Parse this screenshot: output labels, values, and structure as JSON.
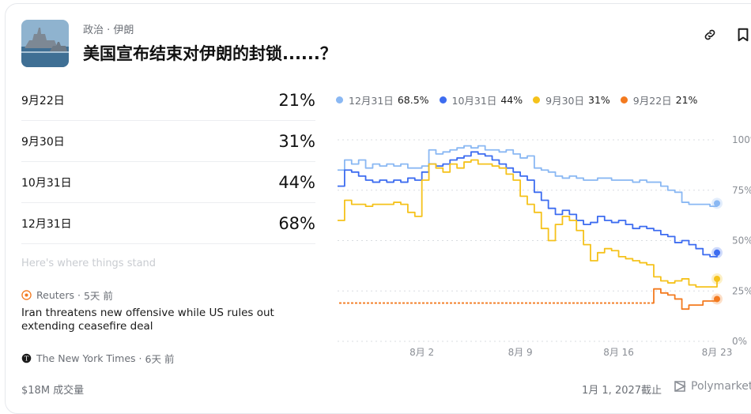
{
  "market": {
    "category": "政治 · 伊朗",
    "title": "美国宣布结束对伊朗的封锁......？",
    "thumbnail_icon": "warship-thumbnail"
  },
  "actions": {
    "link_icon": "link-icon",
    "bookmark_icon": "bookmark-icon"
  },
  "outcomes": [
    {
      "label": "9月22日",
      "percent": "21%"
    },
    {
      "label": "9月30日",
      "percent": "31%"
    },
    {
      "label": "10月31日",
      "percent": "44%"
    },
    {
      "label": "12月31日",
      "percent": "68%"
    }
  ],
  "news": {
    "section_label": "Here's where things stand",
    "items": [
      {
        "source": "Reuters",
        "time": "5天 前",
        "headline": "Iran threatens new offensive while US rules out extending ceasefire deal"
      },
      {
        "source": "The New York Times",
        "time": "6天 前"
      }
    ]
  },
  "footer": {
    "volume": "$18M 成交量",
    "end_date": "1月 1, 2027截止",
    "brand": "Polymarket"
  },
  "legend": [
    {
      "name": "12月31日",
      "value": "68.5%",
      "color": "#8ab8f3"
    },
    {
      "name": "10月31日",
      "value": "44%",
      "color": "#3d6cf0"
    },
    {
      "name": "9月30日",
      "value": "31%",
      "color": "#f5c21b"
    },
    {
      "name": "9月22日",
      "value": "21%",
      "color": "#f37a1f"
    }
  ],
  "chart_data": {
    "type": "line",
    "x_ticks": [
      "8月 2",
      "8月 9",
      "8月 16",
      "8月 23"
    ],
    "y_ticks": [
      "0%",
      "25%",
      "50%",
      "75%",
      "100%"
    ],
    "ylim": [
      0,
      100
    ],
    "x_days": {
      "first": "7月 27",
      "last": "8月 23"
    },
    "series": [
      {
        "name": "12月31日",
        "color": "#8ab8f3",
        "x": [
          0,
          0.5,
          1,
          1.5,
          2,
          2.5,
          3,
          3.5,
          4,
          4.5,
          5,
          5.5,
          6,
          6.5,
          7,
          7.5,
          8,
          8.5,
          9,
          9.5,
          10,
          10.5,
          11,
          11.5,
          12,
          12.5,
          13,
          13.5,
          14,
          14.5,
          15,
          15.5,
          16,
          16.5,
          17,
          17.5,
          18,
          18.5,
          19,
          19.5,
          20,
          20.5,
          21,
          21.5,
          22,
          22.5,
          23,
          23.5,
          24,
          24.5,
          25,
          25.5,
          26,
          26.5,
          27
        ],
        "values": [
          85,
          90,
          88,
          90,
          86,
          88,
          87,
          88,
          87,
          88,
          86,
          86,
          87,
          95,
          93,
          94,
          95,
          96,
          97,
          96,
          97,
          95,
          95,
          94,
          95,
          93,
          91,
          92,
          86,
          85,
          84,
          82,
          81,
          82,
          81,
          80,
          80,
          81,
          81,
          80,
          80,
          80,
          79,
          80,
          79,
          79,
          77,
          75,
          74,
          69,
          68,
          68,
          68,
          67,
          68.5
        ]
      },
      {
        "name": "10月31日",
        "color": "#3d6cf0",
        "x": [
          0,
          0.5,
          1,
          1.5,
          2,
          2.5,
          3,
          3.5,
          4,
          4.5,
          5,
          5.5,
          6,
          6.5,
          7,
          7.5,
          8,
          8.5,
          9,
          9.5,
          10,
          10.5,
          11,
          11.5,
          12,
          12.5,
          13,
          13.5,
          14,
          14.5,
          15,
          15.5,
          16,
          16.5,
          17,
          17.5,
          18,
          18.5,
          19,
          19.5,
          20,
          20.5,
          21,
          21.5,
          22,
          22.5,
          23,
          23.5,
          24,
          24.5,
          25,
          25.5,
          26,
          26.5,
          27
        ],
        "values": [
          77,
          85,
          84,
          82,
          80,
          79,
          80,
          79,
          80,
          79,
          81,
          80,
          84,
          88,
          87,
          88,
          90,
          91,
          92,
          94,
          93,
          92,
          90,
          88,
          86,
          84,
          82,
          80,
          74,
          70,
          66,
          63,
          65,
          63,
          60,
          58,
          59,
          62,
          60,
          59,
          60,
          58,
          56,
          57,
          56,
          55,
          53,
          52,
          49,
          50,
          48,
          46,
          43,
          42,
          44
        ]
      },
      {
        "name": "9月30日",
        "color": "#f5c21b",
        "x": [
          0,
          0.5,
          1,
          1.5,
          2,
          2.5,
          3,
          3.5,
          4,
          4.5,
          5,
          5.5,
          6,
          6.5,
          7,
          7.5,
          8,
          8.5,
          9,
          9.5,
          10,
          10.5,
          11,
          11.5,
          12,
          12.5,
          13,
          13.5,
          14,
          14.5,
          15,
          15.5,
          16,
          16.5,
          17,
          17.5,
          18,
          18.5,
          19,
          19.5,
          20,
          20.5,
          21,
          21.5,
          22,
          22.5,
          23,
          23.5,
          24,
          24.5,
          25,
          25.5,
          26,
          26.5,
          27
        ],
        "values": [
          60,
          70,
          68,
          68,
          67,
          68,
          68,
          68,
          69,
          68,
          64,
          62,
          80,
          88,
          86,
          84,
          88,
          86,
          89,
          90,
          88,
          88,
          87,
          86,
          83,
          80,
          72,
          68,
          64,
          56,
          50,
          58,
          62,
          60,
          55,
          48,
          40,
          44,
          46,
          45,
          42,
          41,
          40,
          39,
          38,
          32,
          30,
          29,
          30,
          31,
          28,
          27,
          27,
          27,
          31
        ]
      },
      {
        "name": "9月22日",
        "color": "#f37a1f",
        "x": [
          0,
          1,
          2,
          3,
          4,
          5,
          6,
          7,
          8,
          9,
          10,
          11,
          12,
          13,
          14,
          15,
          16,
          17,
          18,
          19,
          20,
          21,
          22,
          22.5,
          23,
          23.5,
          24,
          24.5,
          25,
          25.5,
          26,
          26.5,
          27
        ],
        "values": [
          19,
          19,
          19,
          19,
          19,
          19,
          19,
          19,
          19,
          19,
          19,
          19,
          19,
          19,
          19,
          19,
          19,
          19,
          19,
          19,
          19,
          19,
          19,
          26,
          24,
          23,
          21,
          16,
          18,
          18,
          20,
          20,
          21
        ]
      }
    ]
  }
}
